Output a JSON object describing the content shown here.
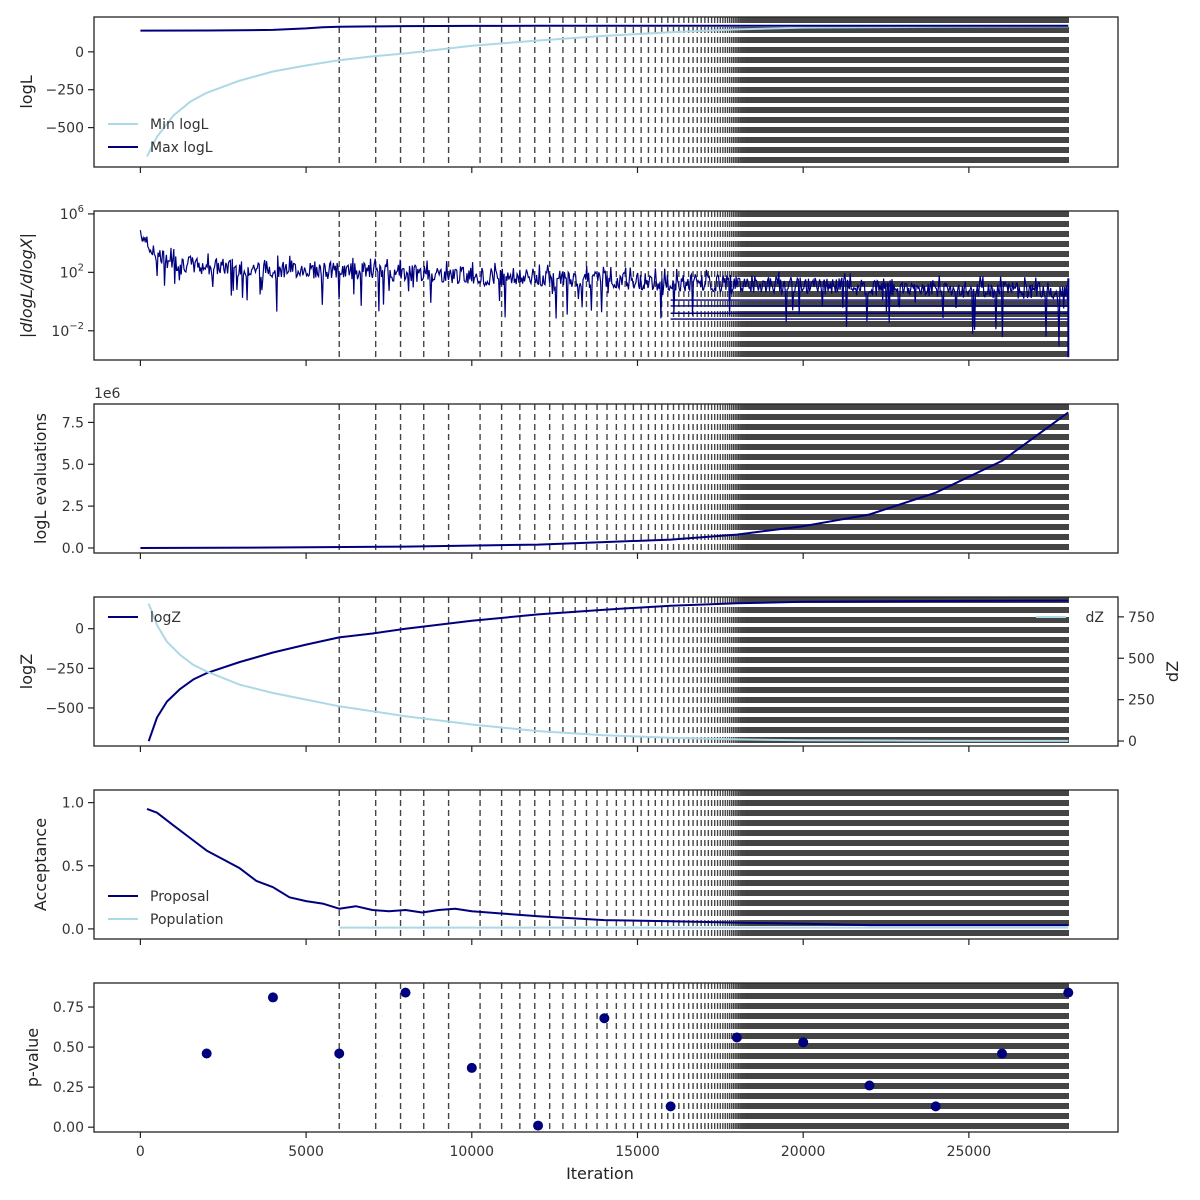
{
  "colors": {
    "dark_series": "#00007f",
    "light_series": "#add8e6",
    "dashed_line": "#444444",
    "axes": "#222222"
  },
  "shared_x": {
    "label": "Iteration",
    "range": [
      -1400,
      29500
    ],
    "ticks": [
      0,
      5000,
      10000,
      15000,
      20000,
      25000
    ],
    "tick_labels": [
      "0",
      "5000",
      "10000",
      "15000",
      "20000",
      "25000"
    ]
  },
  "dashed_lines": {
    "description_free": true,
    "x_start": 6000,
    "x_end": 28000,
    "spacings_early": [
      1100,
      750,
      700,
      750,
      950,
      650,
      550,
      450,
      450,
      400,
      370,
      340,
      320,
      300
    ]
  },
  "chart_data": [
    {
      "type": "line",
      "ylabel": "logL",
      "ylim": [
        -760,
        230
      ],
      "yticks": [
        -500,
        -250,
        0
      ],
      "ytick_labels": [
        "−500",
        "−250",
        "0"
      ],
      "legend": {
        "placement": "lower-left",
        "entries": [
          "Min logL",
          "Max logL"
        ]
      },
      "series": [
        {
          "name": "Min logL",
          "color": "light",
          "x": [
            200,
            500,
            1000,
            1500,
            2000,
            3000,
            4000,
            5000,
            6000,
            7000,
            8000,
            9000,
            10000,
            12000,
            14000,
            16000,
            18000,
            20000,
            24000,
            28000
          ],
          "y": [
            -690,
            -560,
            -420,
            -330,
            -270,
            -190,
            -130,
            -90,
            -55,
            -30,
            -10,
            15,
            40,
            75,
            105,
            130,
            148,
            160,
            165,
            168
          ]
        },
        {
          "name": "Max logL",
          "color": "dark",
          "x": [
            0,
            2000,
            3000,
            4000,
            5000,
            5500,
            6000,
            7000,
            8000,
            10000,
            12000,
            15000,
            20000,
            28000
          ],
          "y": [
            140,
            141,
            143,
            145,
            155,
            163,
            165,
            168,
            170,
            171,
            172,
            172,
            172,
            172
          ]
        }
      ]
    },
    {
      "type": "line",
      "ylabel": "|dlogL/dlogX|",
      "yscale": "log",
      "ylim_log10": [
        -4.0,
        6.2
      ],
      "yticks_log10": [
        -2,
        2,
        6
      ],
      "ytick_labels": [
        {
          "base": "10",
          "exp": "−2"
        },
        {
          "base": "10",
          "exp": "2"
        },
        {
          "base": "10",
          "exp": "6"
        }
      ],
      "envelope": {
        "x": [
          0,
          200,
          400,
          1000,
          2000,
          5000,
          10000,
          15000,
          20000,
          24000,
          28000
        ],
        "upper_log10": [
          5.8,
          4.8,
          4.2,
          3.6,
          3.3,
          3.1,
          2.7,
          2.3,
          2.0,
          1.8,
          1.6
        ],
        "lower_log10": [
          5.0,
          3.2,
          1.0,
          -0.5,
          -0.6,
          -0.8,
          -1.2,
          -1.5,
          -1.7,
          -1.9,
          -3.5
        ]
      }
    },
    {
      "type": "line",
      "ylabel": "logL evaluations",
      "offset_label": "1e6",
      "ylim": [
        -0.3,
        8.6
      ],
      "yticks": [
        0,
        2.5,
        5,
        7.5
      ],
      "ytick_labels": [
        "0.0",
        "2.5",
        "5.0",
        "7.5"
      ],
      "series": [
        {
          "color": "dark",
          "x": [
            0,
            4000,
            8000,
            12000,
            16000,
            18000,
            20000,
            22000,
            24000,
            26000,
            28000
          ],
          "y": [
            0.0,
            0.03,
            0.08,
            0.2,
            0.5,
            0.8,
            1.3,
            2.0,
            3.3,
            5.2,
            8.1
          ]
        }
      ]
    },
    {
      "type": "line",
      "ylabel": "logZ",
      "ylabel_right": "dZ",
      "ylim": [
        -740,
        200
      ],
      "yticks": [
        -500,
        -250,
        0
      ],
      "ytick_labels": [
        "−500",
        "−250",
        "0"
      ],
      "ylim_right": [
        -30,
        870
      ],
      "yticks_right": [
        0,
        250,
        500,
        750
      ],
      "ytick_labels_right": [
        "0",
        "250",
        "500",
        "750"
      ],
      "legend_left": {
        "placement": "upper-left",
        "entries": [
          "logZ"
        ]
      },
      "legend_right": {
        "placement": "upper-right",
        "entries": [
          "dZ"
        ]
      },
      "series": [
        {
          "name": "logZ",
          "color": "dark",
          "axis": "left",
          "x": [
            250,
            500,
            800,
            1200,
            1600,
            2000,
            3000,
            4000,
            5000,
            6000,
            7000,
            8000,
            10000,
            12000,
            14000,
            16000,
            18000,
            20000,
            24000,
            28000
          ],
          "y": [
            -710,
            -560,
            -460,
            -380,
            -320,
            -280,
            -210,
            -150,
            -100,
            -55,
            -30,
            0,
            50,
            90,
            120,
            145,
            160,
            170,
            175,
            177
          ]
        },
        {
          "name": "dZ",
          "color": "light",
          "axis": "right",
          "x": [
            250,
            500,
            800,
            1200,
            1600,
            2000,
            3000,
            4000,
            5000,
            6000,
            7000,
            8000,
            10000,
            12000,
            14000,
            16000,
            18000,
            20000,
            24000,
            28000
          ],
          "y": [
            830,
            700,
            600,
            520,
            460,
            420,
            340,
            290,
            250,
            210,
            180,
            150,
            100,
            60,
            35,
            20,
            10,
            5,
            2,
            1
          ]
        }
      ]
    },
    {
      "type": "line",
      "ylabel": "Acceptance",
      "ylim": [
        -0.08,
        1.1
      ],
      "yticks": [
        0,
        0.5,
        1.0
      ],
      "ytick_labels": [
        "0.0",
        "0.5",
        "1.0"
      ],
      "legend": {
        "placement": "lower-left",
        "entries": [
          "Proposal",
          "Population"
        ]
      },
      "series": [
        {
          "name": "Proposal",
          "color": "dark",
          "x": [
            200,
            500,
            1000,
            1500,
            2000,
            2500,
            3000,
            3500,
            4000,
            4500,
            5000,
            5500,
            6000,
            6500,
            7000,
            7500,
            8000,
            8500,
            9000,
            9500,
            10000,
            11000,
            12000,
            14000,
            16000,
            18000,
            20000,
            22000,
            24000,
            28000
          ],
          "y": [
            0.95,
            0.92,
            0.82,
            0.72,
            0.62,
            0.55,
            0.48,
            0.38,
            0.33,
            0.25,
            0.22,
            0.2,
            0.16,
            0.18,
            0.15,
            0.14,
            0.15,
            0.13,
            0.15,
            0.16,
            0.14,
            0.12,
            0.1,
            0.07,
            0.06,
            0.05,
            0.04,
            0.03,
            0.03,
            0.03
          ]
        },
        {
          "name": "Population",
          "color": "light",
          "x": [
            6000,
            28000
          ],
          "y": [
            0.01,
            0.01
          ]
        }
      ]
    },
    {
      "type": "scatter",
      "xlabel": "Iteration",
      "ylabel": "p-value",
      "ylim": [
        -0.03,
        0.9
      ],
      "yticks": [
        0,
        0.25,
        0.5,
        0.75
      ],
      "ytick_labels": [
        "0.00",
        "0.25",
        "0.50",
        "0.75"
      ],
      "series": [
        {
          "color": "dark",
          "x": [
            2000,
            4000,
            6000,
            8000,
            10000,
            12000,
            14000,
            16000,
            18000,
            20000,
            22000,
            24000,
            26000,
            28000
          ],
          "y": [
            0.46,
            0.81,
            0.46,
            0.84,
            0.37,
            0.01,
            0.68,
            0.13,
            0.56,
            0.53,
            0.26,
            0.13,
            0.46,
            0.84
          ]
        }
      ]
    }
  ]
}
